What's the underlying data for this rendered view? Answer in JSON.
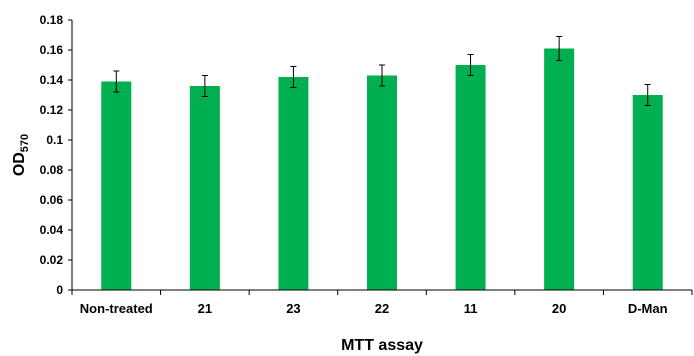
{
  "chart_data": {
    "type": "bar",
    "categories": [
      "Non-treated",
      "21",
      "23",
      "22",
      "11",
      "20",
      "D-Man"
    ],
    "series": [
      {
        "values": [
          0.139,
          0.136,
          0.142,
          0.143,
          0.15,
          0.161,
          0.13
        ],
        "errors": [
          0.007,
          0.007,
          0.007,
          0.007,
          0.007,
          0.008,
          0.007
        ]
      }
    ],
    "xlabel": "MTT assay",
    "ylabel_main": "OD",
    "ylabel_sub": "570",
    "ylim": [
      0,
      0.18
    ],
    "yticks": [
      0,
      0.02,
      0.04,
      0.06,
      0.08,
      0.1,
      0.12,
      0.14,
      0.16,
      0.18
    ],
    "ytick_labels": [
      "0",
      "0.02",
      "0.04",
      "0.06",
      "0.08",
      "0.1",
      "0.12",
      "0.14",
      "0.16",
      "0.18"
    ],
    "grid": false,
    "legend": "none",
    "bar_color": "#00b050"
  }
}
